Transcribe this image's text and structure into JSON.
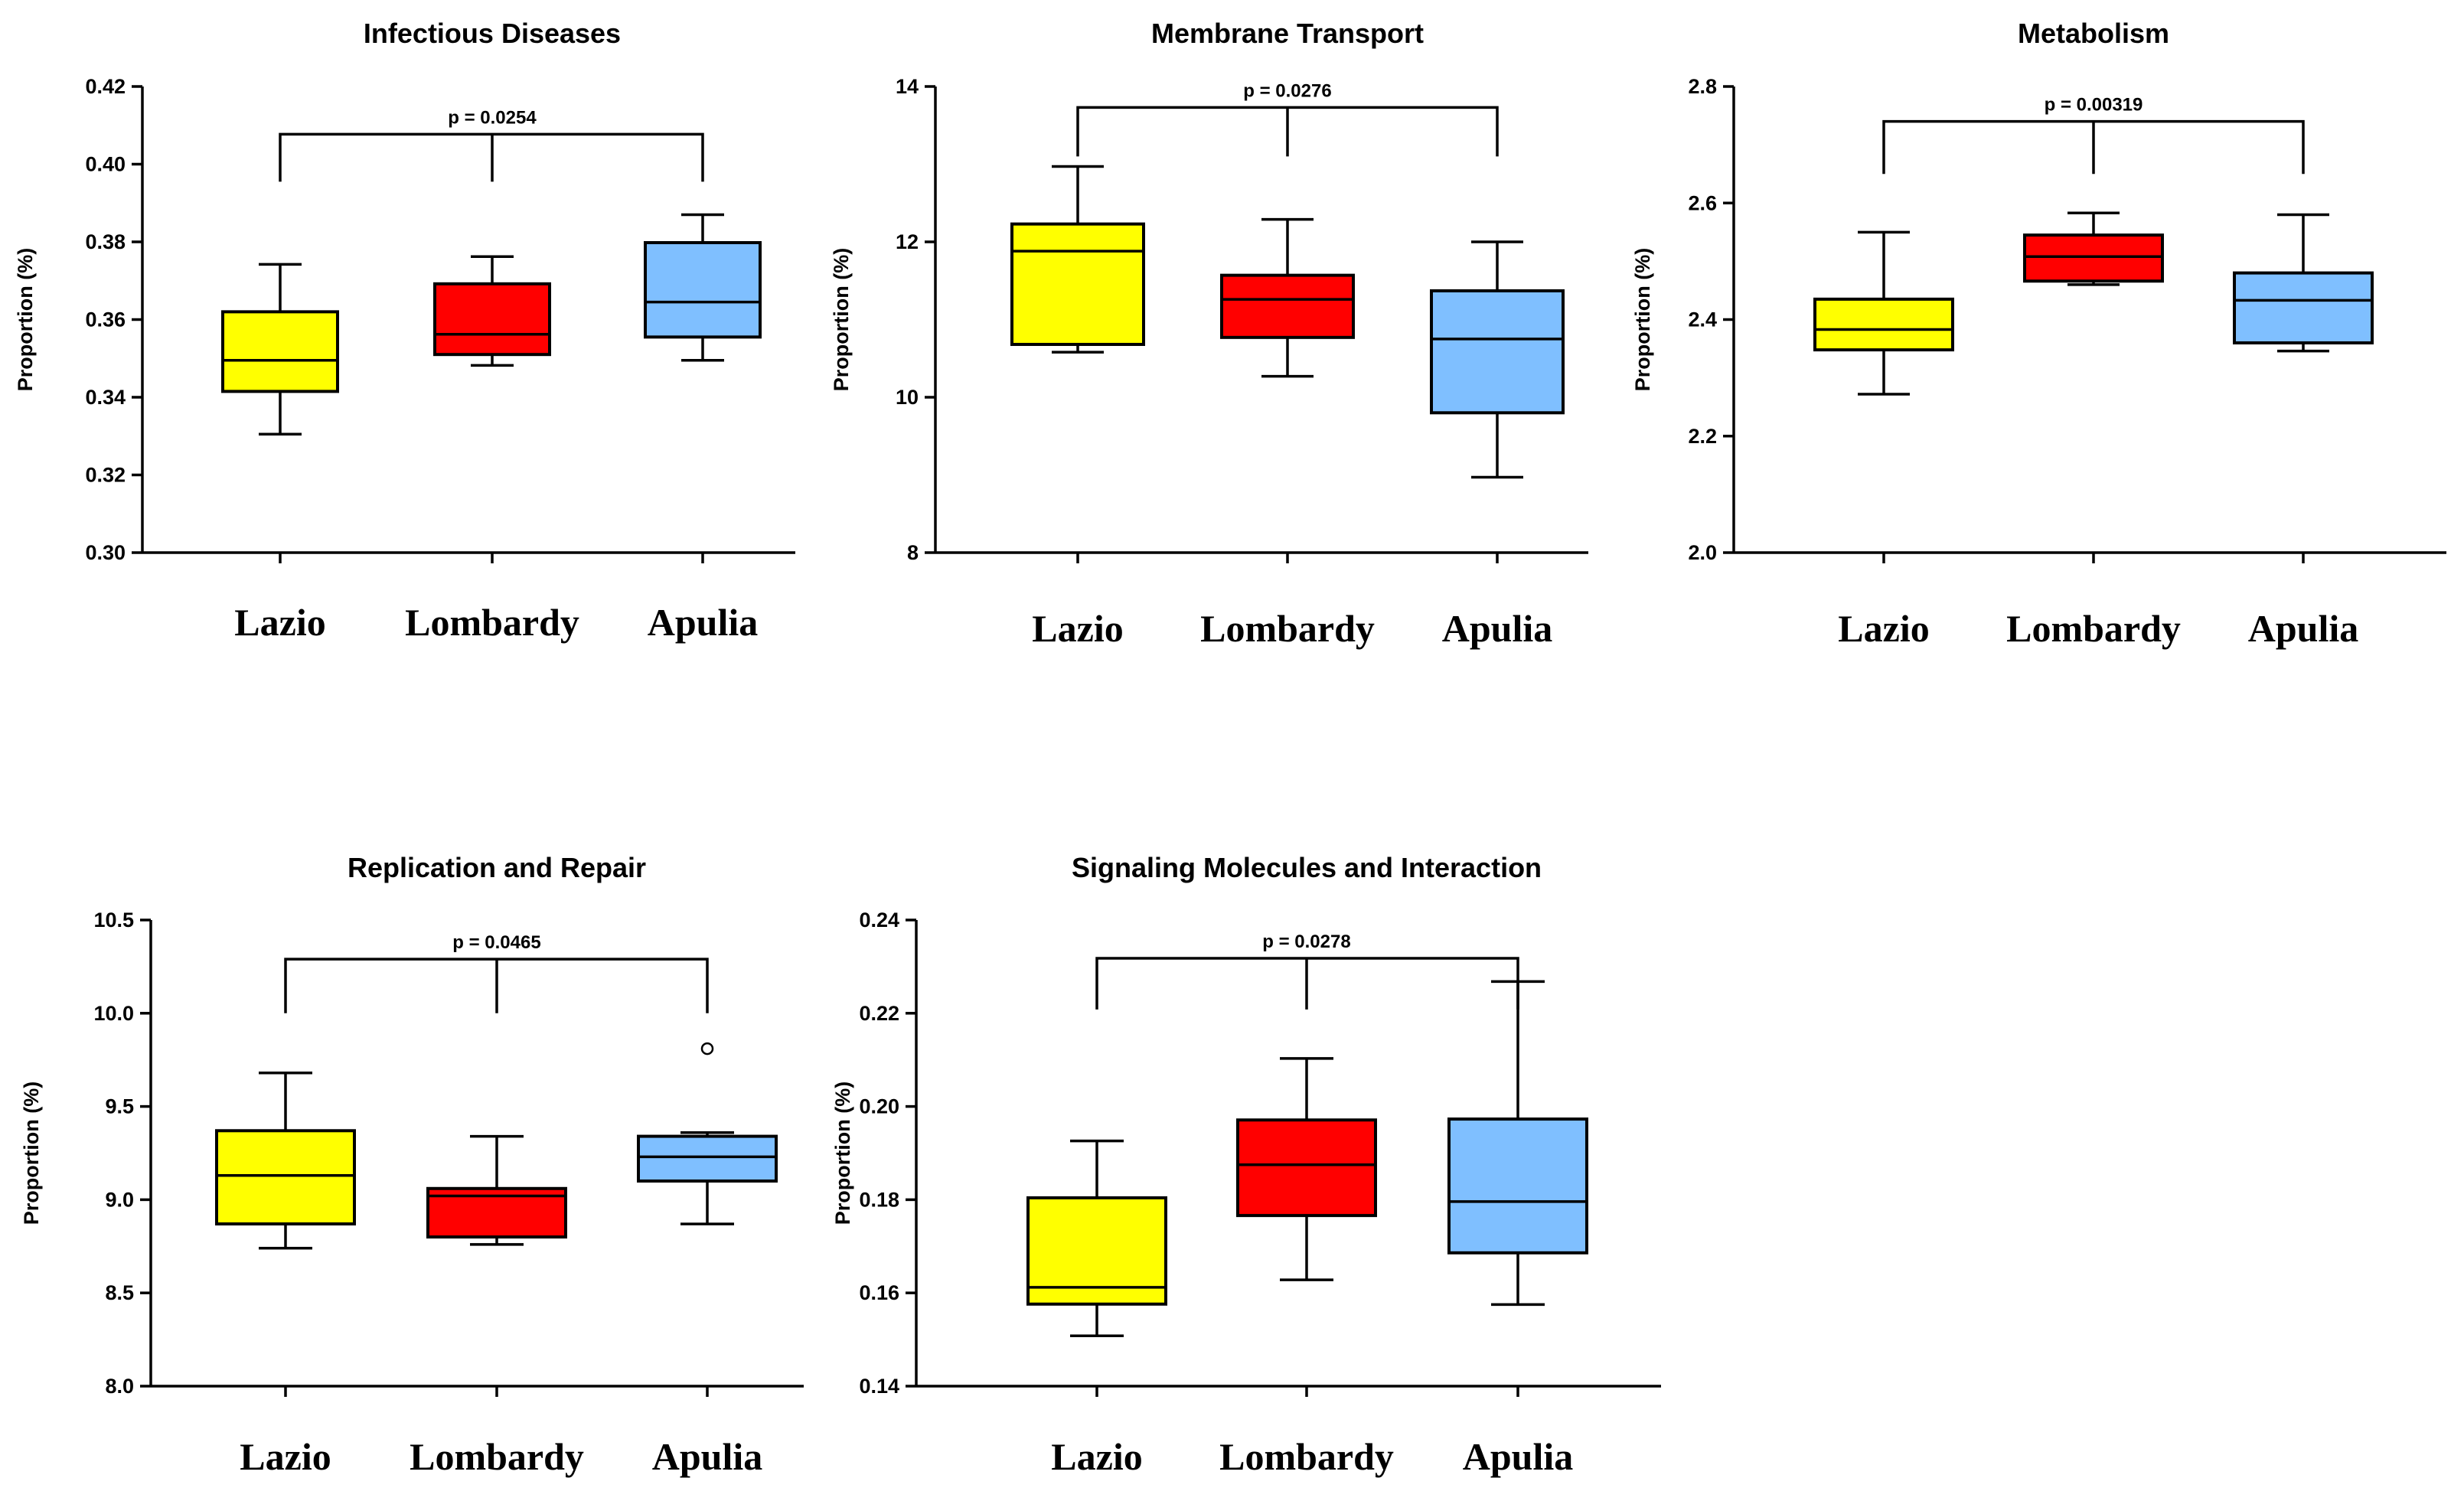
{
  "chart_data": [
    {
      "type": "box",
      "title": "Infectious Diseases",
      "ylabel": "Proportion (%)",
      "ylim": [
        0.3,
        0.42
      ],
      "yticks": [
        "0.30",
        "0.32",
        "0.34",
        "0.36",
        "0.38",
        "0.40",
        "0.42"
      ],
      "categories": [
        "Lazio",
        "Lombardy",
        "Apulia"
      ],
      "boxes": [
        {
          "name": "Lazio",
          "min": 0.3305,
          "q1": 0.3415,
          "median": 0.3495,
          "q3": 0.362,
          "max": 0.3742
        },
        {
          "name": "Lombardy",
          "min": 0.3482,
          "q1": 0.351,
          "median": 0.3562,
          "q3": 0.3692,
          "max": 0.3762
        },
        {
          "name": "Apulia",
          "min": 0.3495,
          "q1": 0.3555,
          "median": 0.3645,
          "q3": 0.3798,
          "max": 0.387
        }
      ],
      "outliers": [],
      "pvalue": "p = 0.0254",
      "bracket_y": 0.4077,
      "bracket_drop": 0.3955
    },
    {
      "type": "box",
      "title": "Membrane Transport",
      "ylabel": "Proportion (%)",
      "ylim": [
        8,
        14
      ],
      "yticks": [
        "8",
        "10",
        "12",
        "14"
      ],
      "categories": [
        "Lazio",
        "Lombardy",
        "Apulia"
      ],
      "boxes": [
        {
          "name": "Lazio",
          "min": 10.58,
          "q1": 10.68,
          "median": 11.88,
          "q3": 12.23,
          "max": 12.97
        },
        {
          "name": "Lombardy",
          "min": 10.27,
          "q1": 10.77,
          "median": 11.26,
          "q3": 11.57,
          "max": 12.29
        },
        {
          "name": "Apulia",
          "min": 8.97,
          "q1": 9.8,
          "median": 10.75,
          "q3": 11.37,
          "max": 12.0
        }
      ],
      "outliers": [],
      "pvalue": "p = 0.0276",
      "bracket_y": 13.73,
      "bracket_drop": 13.1
    },
    {
      "type": "box",
      "title": "Metabolism",
      "ylabel": "Proportion (%)",
      "ylim": [
        2.0,
        2.8
      ],
      "yticks": [
        "2.0",
        "2.2",
        "2.4",
        "2.6",
        "2.8"
      ],
      "categories": [
        "Lazio",
        "Lombardy",
        "Apulia"
      ],
      "boxes": [
        {
          "name": "Lazio",
          "min": 2.272,
          "q1": 2.348,
          "median": 2.383,
          "q3": 2.435,
          "max": 2.55
        },
        {
          "name": "Lombardy",
          "min": 2.46,
          "q1": 2.466,
          "median": 2.508,
          "q3": 2.545,
          "max": 2.583
        },
        {
          "name": "Apulia",
          "min": 2.346,
          "q1": 2.36,
          "median": 2.433,
          "q3": 2.48,
          "max": 2.58
        }
      ],
      "outliers": [],
      "pvalue": "p = 0.00319",
      "bracket_y": 2.74,
      "bracket_drop": 2.65
    },
    {
      "type": "box",
      "title": "Replication and Repair",
      "ylabel": "Proportion (%)",
      "ylim": [
        8.0,
        10.5
      ],
      "yticks": [
        "8.0",
        "8.5",
        "9.0",
        "9.5",
        "10.0",
        "10.5"
      ],
      "categories": [
        "Lazio",
        "Lombardy",
        "Apulia"
      ],
      "boxes": [
        {
          "name": "Lazio",
          "min": 8.74,
          "q1": 8.87,
          "median": 9.13,
          "q3": 9.37,
          "max": 9.68
        },
        {
          "name": "Lombardy",
          "min": 8.76,
          "q1": 8.8,
          "median": 9.02,
          "q3": 9.06,
          "max": 9.34
        },
        {
          "name": "Apulia",
          "min": 8.87,
          "q1": 9.1,
          "median": 9.23,
          "q3": 9.34,
          "max": 9.36
        }
      ],
      "outliers": [
        {
          "category": "Apulia",
          "value": 9.81
        }
      ],
      "pvalue": "p = 0.0465",
      "bracket_y": 10.29,
      "bracket_drop": 10.0
    },
    {
      "type": "box",
      "title": "Signaling Molecules and Interaction",
      "ylabel": "Proportion (%)",
      "ylim": [
        0.14,
        0.24
      ],
      "yticks": [
        "0.14",
        "0.16",
        "0.18",
        "0.20",
        "0.22",
        "0.24"
      ],
      "categories": [
        "Lazio",
        "Lombardy",
        "Apulia"
      ],
      "boxes": [
        {
          "name": "Lazio",
          "min": 0.1508,
          "q1": 0.1576,
          "median": 0.1612,
          "q3": 0.1804,
          "max": 0.1926
        },
        {
          "name": "Lombardy",
          "min": 0.1628,
          "q1": 0.1766,
          "median": 0.1875,
          "q3": 0.1971,
          "max": 0.2103
        },
        {
          "name": "Apulia",
          "min": 0.1575,
          "q1": 0.1686,
          "median": 0.1796,
          "q3": 0.1973,
          "max": 0.2268
        }
      ],
      "outliers": [],
      "pvalue": "p = 0.0278",
      "bracket_y": 0.2318,
      "bracket_drop": 0.2208
    }
  ],
  "colors": {
    "Lazio": "#ffff00",
    "Lombardy": "#ff0000",
    "Apulia": "#7fbfff"
  }
}
